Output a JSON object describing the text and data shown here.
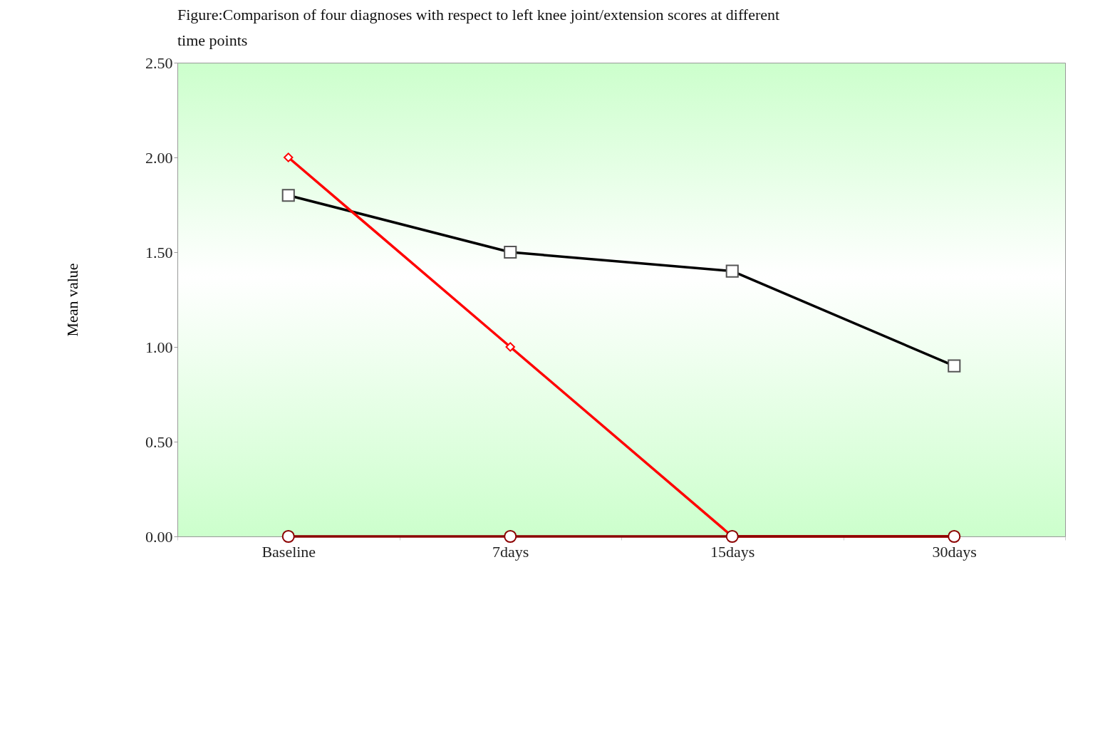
{
  "chart_data": {
    "type": "line",
    "title": "Figure:Comparison of four diagnoses with respect to left knee joint/extension scores at different time points",
    "ylabel": "Mean value",
    "categories": [
      "Baseline",
      "7days",
      "15days",
      "30days"
    ],
    "series": [
      {
        "color": "#000000",
        "marker": "square",
        "values": [
          1.8,
          1.5,
          1.4,
          0.9
        ]
      },
      {
        "color": "#ff0000",
        "marker": "diamond",
        "values": [
          2,
          1,
          0,
          0
        ]
      },
      {
        "color": "#8b0000",
        "marker": "circle",
        "values": [
          0,
          0,
          0,
          0
        ]
      }
    ],
    "ylim": [
      0,
      2.5
    ],
    "yticks": [
      {
        "value": 0,
        "label": "0.00"
      },
      {
        "value": 0.5,
        "label": "0.50"
      },
      {
        "value": 1,
        "label": "1.00"
      },
      {
        "value": 1.5,
        "label": "1.50"
      },
      {
        "value": 2,
        "label": "2.00"
      },
      {
        "value": 2.5,
        "label": "2.50"
      }
    ]
  }
}
